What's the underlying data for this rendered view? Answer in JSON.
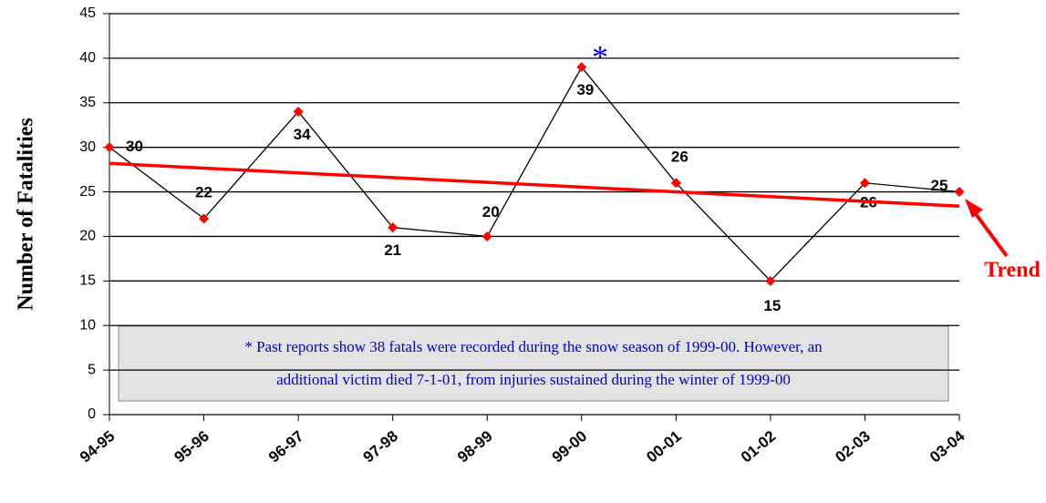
{
  "chart_data": {
    "type": "line",
    "y_label": "Number of Fatalities",
    "categories": [
      "94-95",
      "95-96",
      "96-97",
      "97-98",
      "98-99",
      "99-00",
      "00-01",
      "01-02",
      "02-03",
      "03-04"
    ],
    "series": [
      {
        "color": "#000000",
        "marker_color": "#ff0000",
        "values": [
          30,
          22,
          34,
          21,
          20,
          39,
          26,
          15,
          26,
          25
        ]
      }
    ],
    "trend": {
      "name": "Trend",
      "color": "#ff0000",
      "values": [
        28.2,
        23.4
      ]
    },
    "ylim": [
      0,
      45
    ],
    "yticks": [
      0,
      5,
      10,
      15,
      20,
      25,
      30,
      35,
      40,
      45
    ],
    "grid": true,
    "asterisk": "*",
    "annotation": [
      "* Past reports show 38 fatals were recorded during the snow season of 1999-00. However, an",
      "additional victim died 7-1-01, from injuries sustained during the winter of 1999-00"
    ]
  }
}
